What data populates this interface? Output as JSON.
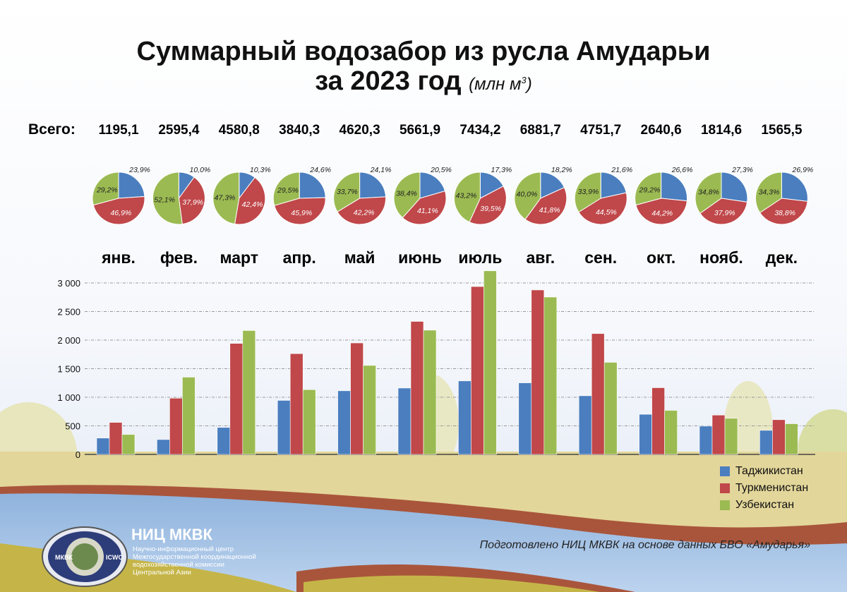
{
  "title_line1": "Суммарный водозабор из русла Амударьи",
  "title_line2": "за 2023 год",
  "title_unit": "(млн м",
  "title_unit_sup": "3",
  "title_unit_close": ")",
  "totals_label": "Всего:",
  "colors": {
    "Таджикистан": "#4a7ebf",
    "Туркменистан": "#c0474a",
    "Узбекистан": "#9bbb52"
  },
  "chart_data": {
    "type": "bar",
    "title": "Суммарный водозабор из русла Амударьи за 2023 год (млн м3)",
    "categories": [
      "янв.",
      "фев.",
      "март",
      "апр.",
      "май",
      "июнь",
      "июль",
      "авг.",
      "сен.",
      "окт.",
      "нояб.",
      "дек."
    ],
    "totals": [
      "1195,1",
      "2595,4",
      "4580,8",
      "3840,3",
      "4620,3",
      "5661,9",
      "7434,2",
      "6881,7",
      "4751,7",
      "2640,6",
      "1814,6",
      "1565,5"
    ],
    "series": [
      {
        "name": "Таджикистан",
        "color": "#4a7ebf",
        "values": [
          286,
          260,
          472,
          945,
          1113,
          1161,
          1286,
          1252,
          1026,
          702,
          495,
          421
        ],
        "shares": [
          "23,9%",
          "10,0%",
          "10,3%",
          "24,6%",
          "24,1%",
          "20,5%",
          "17,3%",
          "18,2%",
          "21,6%",
          "26,6%",
          "27,3%",
          "26,9%"
        ]
      },
      {
        "name": "Туркменистан",
        "color": "#c0474a",
        "values": [
          560,
          984,
          1942,
          1763,
          1950,
          2327,
          2937,
          2877,
          2114,
          1167,
          688,
          607
        ],
        "shares": [
          "46,9%",
          "37,9%",
          "42,4%",
          "45,9%",
          "42,2%",
          "41,1%",
          "39,5%",
          "41,8%",
          "44,5%",
          "44,2%",
          "37,9%",
          "38,8%"
        ]
      },
      {
        "name": "Узбекистан",
        "color": "#9bbb52",
        "values": [
          349,
          1352,
          2167,
          1133,
          1557,
          2174,
          3212,
          2753,
          1611,
          771,
          632,
          537
        ],
        "shares": [
          "29,2%",
          "52,1%",
          "47,3%",
          "29,5%",
          "33,7%",
          "38,4%",
          "43,2%",
          "40,0%",
          "33,9%",
          "29,2%",
          "34,8%",
          "34,3%"
        ]
      }
    ],
    "ylim": [
      0,
      3200
    ],
    "yticks": [
      "0",
      "500",
      "1 000",
      "1 500",
      "2 000",
      "2 500",
      "3 000"
    ],
    "ytick_values": [
      0,
      500,
      1000,
      1500,
      2000,
      2500,
      3000
    ],
    "grid": true,
    "legend_placement": "bottom-right"
  },
  "legend": [
    "Таджикистан",
    "Туркменистан",
    "Узбекистан"
  ],
  "footer_note": "Подготовлено НИЦ МКВК на основе данных БВО «Амударья»",
  "org": {
    "name": "НИЦ МКВК",
    "desc": "Научно-информационный центр Межгосударственной координационной водохозяйственной комиссии Центральной Азии",
    "logo_text_left": "МКВК",
    "logo_text_right": "ICWC"
  }
}
